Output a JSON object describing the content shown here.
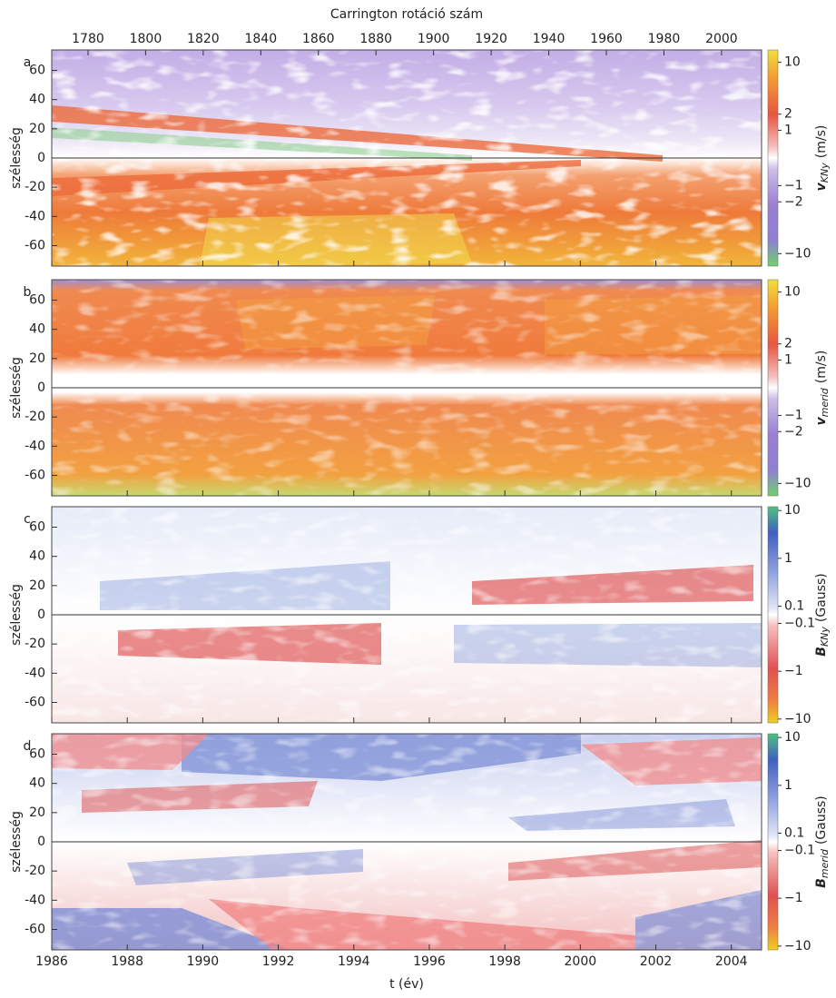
{
  "chart_data": {
    "type": "heatmap-stack",
    "x2label": "Carrington rotáció szám",
    "x2lim": [
      1767.4,
      2013.9
    ],
    "x2ticks": [
      1780,
      1800,
      1820,
      1840,
      1860,
      1880,
      1900,
      1920,
      1940,
      1960,
      1980,
      2000
    ],
    "xlabel": "t (év)",
    "xlim": [
      1986,
      2004.8
    ],
    "xticks": [
      1986,
      1988,
      1990,
      1992,
      1994,
      1996,
      1998,
      2000,
      2002,
      2004
    ],
    "panels": [
      {
        "label": "a",
        "ylabel": "szélesség",
        "ylim": [
          -74,
          74
        ],
        "yticks": [
          -60,
          -40,
          -20,
          0,
          20,
          40,
          60
        ],
        "colorbar": {
          "scale": "symlog",
          "clim": [
            -14,
            14
          ],
          "ticks": [
            10,
            2,
            1,
            {
              "value": -1,
              "label": "−1"
            },
            {
              "value": -2,
              "label": "−2"
            },
            {
              "value": -10,
              "label": "−10"
            }
          ],
          "label": {
            "symbol": "v",
            "subscript": "KNy",
            "unit": "(m/s)"
          }
        }
      },
      {
        "label": "b",
        "ylabel": "szélesség",
        "ylim": [
          -74,
          74
        ],
        "yticks": [
          -60,
          -40,
          -20,
          0,
          20,
          40,
          60
        ],
        "colorbar": {
          "scale": "symlog",
          "clim": [
            -14,
            14
          ],
          "ticks": [
            10,
            2,
            1,
            {
              "value": -1,
              "label": "−1"
            },
            {
              "value": -2,
              "label": "−2"
            },
            {
              "value": -10,
              "label": "−10"
            }
          ],
          "label": {
            "symbol": "v",
            "subscript": "merid",
            "unit": "(m/s)"
          }
        }
      },
      {
        "label": "c",
        "ylabel": "szélesség",
        "ylim": [
          -74,
          74
        ],
        "yticks": [
          -60,
          -40,
          -20,
          0,
          20,
          40,
          60
        ],
        "colorbar": {
          "scale": "log",
          "clim": [
            -12,
            12
          ],
          "ticks": [
            10,
            1,
            0.1,
            {
              "value": -0.1,
              "label": "−0.1"
            },
            {
              "value": -1,
              "label": "−1"
            },
            {
              "value": -10,
              "label": "−10"
            }
          ],
          "label": {
            "symbol": "B",
            "subscript": "KNy",
            "unit": "(Gauss)"
          }
        }
      },
      {
        "label": "d",
        "ylabel": "szélesség",
        "ylim": [
          -74,
          74
        ],
        "yticks": [
          -60,
          -40,
          -20,
          0,
          20,
          40,
          60
        ],
        "colorbar": {
          "scale": "log",
          "clim": [
            -12,
            12
          ],
          "ticks": [
            10,
            1,
            0.1,
            {
              "value": -0.1,
              "label": "−0.1"
            },
            {
              "value": -1,
              "label": "−1"
            },
            {
              "value": -10,
              "label": "−10"
            }
          ],
          "label": {
            "symbol": "B",
            "subscript": "merid",
            "unit": "(Gauss)"
          }
        }
      }
    ]
  }
}
